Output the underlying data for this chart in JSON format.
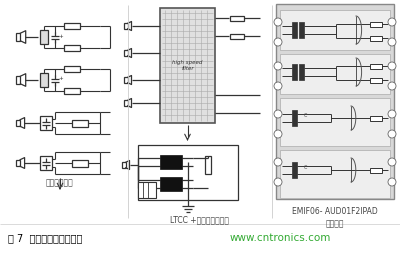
{
  "bg_color": "#ffffff",
  "title_text": "图 7  三种可行的解决方案",
  "website_text": "www.cntronics.com",
  "label1": "离散解决方案",
  "label2": "LTCC +变阻器解决方案",
  "label3_top": "EMIF06- AUD01F2IPAD",
  "label3": "解决方案",
  "title_color": "#000000",
  "website_color": "#33aa33",
  "label_color": "#444444",
  "fig_width": 4.0,
  "fig_height": 2.56
}
